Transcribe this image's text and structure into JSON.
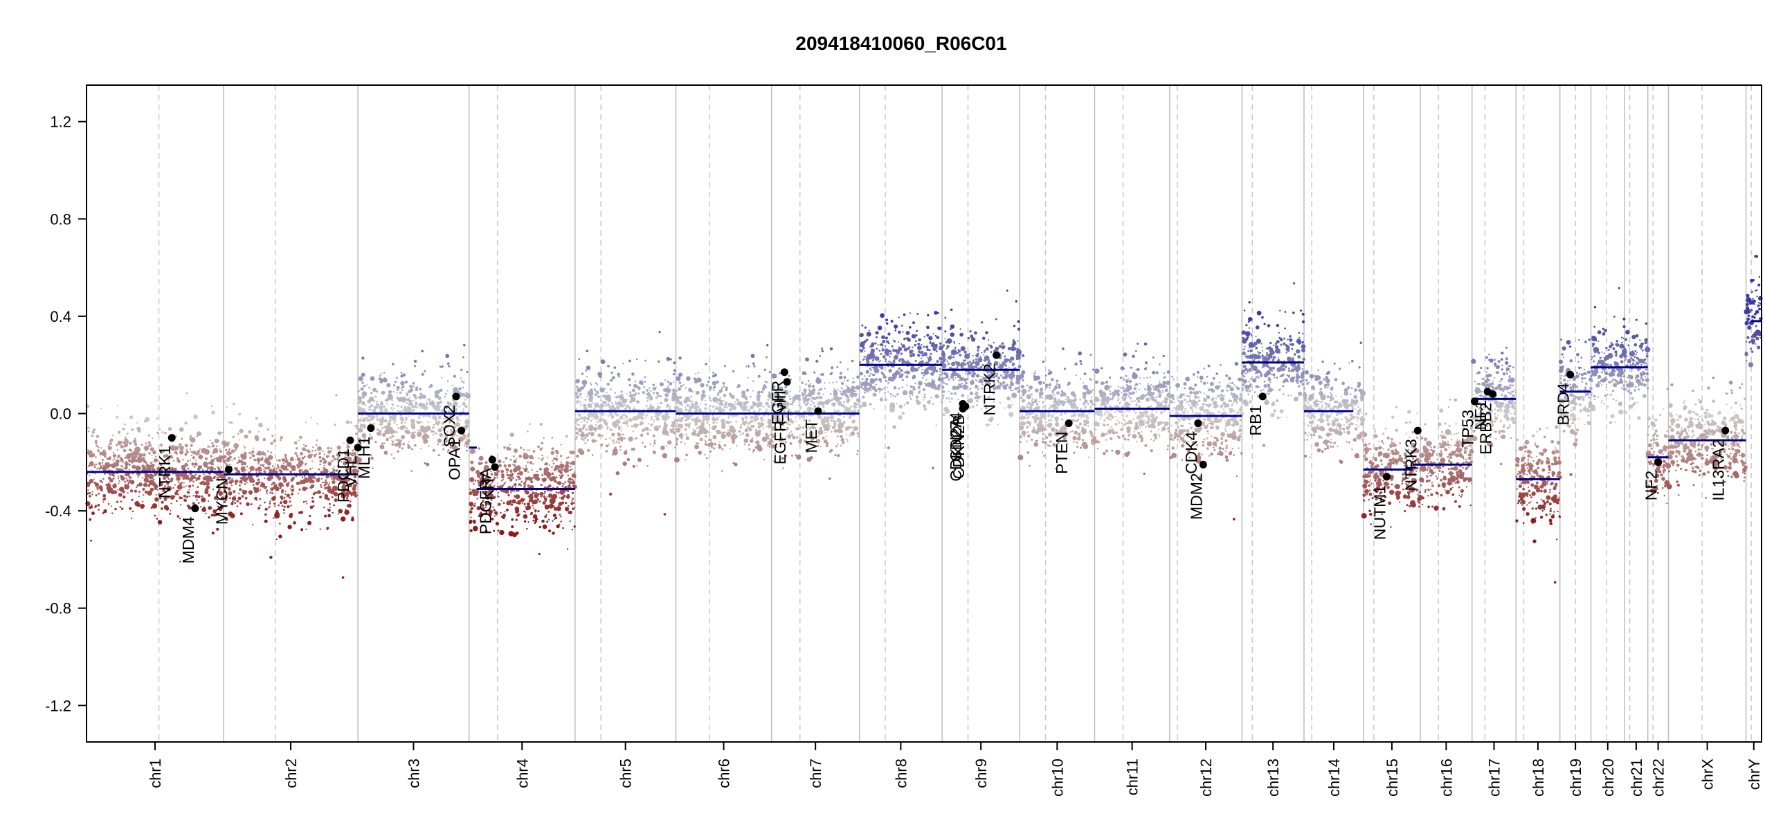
{
  "chart_data": {
    "type": "scatter",
    "title": "209418410060_R06C01",
    "xlabel": "",
    "ylabel": "",
    "ylim": [
      -1.35,
      1.35
    ],
    "y_ticks": [
      {
        "value": 1.2,
        "label": "1.2"
      },
      {
        "value": 0.8,
        "label": "0.8"
      },
      {
        "value": 0.4,
        "label": "0.4"
      },
      {
        "value": 0.0,
        "label": "0.0"
      },
      {
        "value": -0.4,
        "label": "-0.4"
      },
      {
        "value": -0.8,
        "label": "-0.8"
      },
      {
        "value": -1.2,
        "label": "-1.2"
      }
    ],
    "grid": false,
    "colors": {
      "loss": "#8b1a1a",
      "neutral": "#cccccc",
      "gain": "#3b3ba0",
      "segment": "#00008b",
      "gene_point": "#000000",
      "chrom_border": "#bdbdbd",
      "centromere": "#c8c8c8"
    },
    "chromosomes": [
      {
        "name": "chr1",
        "label": "chr1",
        "start": 0.0,
        "end": 0.53,
        "centromere": 0.28,
        "level": -0.24
      },
      {
        "name": "chr2",
        "label": "chr2",
        "start": 0.53,
        "end": 1.05,
        "centromere": 0.73,
        "level": -0.25
      },
      {
        "name": "chr3",
        "label": "chr3",
        "start": 1.05,
        "end": 1.48,
        "centromere": null,
        "level": 0.0
      },
      {
        "name": "chr4",
        "label": "chr4",
        "start": 1.48,
        "end": 1.89,
        "centromere": 1.59,
        "level": -0.31
      },
      {
        "name": "chr5",
        "label": "chr5",
        "start": 1.89,
        "end": 2.28,
        "centromere": 1.99,
        "level": 0.01
      },
      {
        "name": "chr6",
        "label": "chr6",
        "start": 2.28,
        "end": 2.65,
        "centromere": 2.41,
        "level": 0.0
      },
      {
        "name": "chr7",
        "label": "chr7",
        "start": 2.65,
        "end": 2.99,
        "centromere": 2.76,
        "level": 0.0
      },
      {
        "name": "chr8",
        "label": "chr8",
        "start": 2.99,
        "end": 3.31,
        "centromere": 3.09,
        "level": 0.2
      },
      {
        "name": "chr9",
        "label": "chr9",
        "start": 3.31,
        "end": 3.61,
        "centromere": 3.41,
        "level": 0.18
      },
      {
        "name": "chr10",
        "label": "chr10",
        "start": 3.61,
        "end": 3.9,
        "centromere": 3.71,
        "level": 0.01
      },
      {
        "name": "chr11",
        "label": "chr11",
        "start": 3.9,
        "end": 4.19,
        "centromere": 4.01,
        "level": 0.02
      },
      {
        "name": "chr12",
        "label": "chr12",
        "start": 4.19,
        "end": 4.47,
        "centromere": 4.22,
        "level": -0.01
      },
      {
        "name": "chr13",
        "label": "chr13",
        "start": 4.47,
        "end": 4.71,
        "centromere": 4.51,
        "level": 0.21
      },
      {
        "name": "chr14",
        "label": "chr14",
        "start": 4.71,
        "end": 4.94,
        "centromere": 4.74,
        "level": 0.01
      },
      {
        "name": "chr15",
        "label": "chr15",
        "start": 4.94,
        "end": 5.16,
        "centromere": 4.98,
        "level": -0.23
      },
      {
        "name": "chr16",
        "label": "chr16",
        "start": 5.16,
        "end": 5.36,
        "centromere": 5.23,
        "level": -0.21
      },
      {
        "name": "chr17",
        "label": "chr17",
        "start": 5.36,
        "end": 5.53,
        "centromere": 5.41,
        "level": 0.06
      },
      {
        "name": "chr18",
        "label": "chr18",
        "start": 5.53,
        "end": 5.7,
        "centromere": 5.56,
        "level": -0.27
      },
      {
        "name": "chr19",
        "label": "chr19",
        "start": 5.7,
        "end": 5.82,
        "centromere": 5.76,
        "level": 0.09
      },
      {
        "name": "chr20",
        "label": "chr20",
        "start": 5.82,
        "end": 5.95,
        "centromere": 5.88,
        "level": 0.19
      },
      {
        "name": "chr21",
        "label": "chr21",
        "start": 5.95,
        "end": 6.04,
        "centromere": 5.97,
        "level": 0.19
      },
      {
        "name": "chr22",
        "label": "chr22",
        "start": 6.04,
        "end": 6.12,
        "centromere": 6.06,
        "level": -0.18
      },
      {
        "name": "chrX",
        "label": "chrX",
        "start": 6.12,
        "end": 6.42,
        "centromere": 6.25,
        "level": -0.11
      },
      {
        "name": "chrY",
        "label": "chrY",
        "start": 6.42,
        "end": 6.48,
        "centromere": 6.44,
        "level": 0.38
      }
    ],
    "segments": [
      {
        "x0": 0.0,
        "x1": 0.53,
        "y": -0.24
      },
      {
        "x0": 0.53,
        "x1": 1.05,
        "y": -0.25
      },
      {
        "x0": 1.05,
        "x1": 1.48,
        "y": 0.0
      },
      {
        "x0": 1.48,
        "x1": 1.51,
        "y": -0.14
      },
      {
        "x0": 1.51,
        "x1": 1.89,
        "y": -0.31
      },
      {
        "x0": 1.89,
        "x1": 2.28,
        "y": 0.01
      },
      {
        "x0": 2.28,
        "x1": 2.65,
        "y": 0.0
      },
      {
        "x0": 2.65,
        "x1": 2.99,
        "y": 0.0
      },
      {
        "x0": 2.99,
        "x1": 3.31,
        "y": 0.2
      },
      {
        "x0": 3.31,
        "x1": 3.61,
        "y": 0.18
      },
      {
        "x0": 3.61,
        "x1": 3.9,
        "y": 0.01
      },
      {
        "x0": 3.9,
        "x1": 4.19,
        "y": 0.02
      },
      {
        "x0": 4.19,
        "x1": 4.47,
        "y": -0.01
      },
      {
        "x0": 4.47,
        "x1": 4.71,
        "y": 0.21
      },
      {
        "x0": 4.71,
        "x1": 4.9,
        "y": 0.01
      },
      {
        "x0": 4.94,
        "x1": 5.13,
        "y": -0.23
      },
      {
        "x0": 5.13,
        "x1": 5.36,
        "y": -0.21
      },
      {
        "x0": 5.36,
        "x1": 5.53,
        "y": 0.06
      },
      {
        "x0": 5.53,
        "x1": 5.7,
        "y": -0.27
      },
      {
        "x0": 5.7,
        "x1": 5.82,
        "y": 0.09
      },
      {
        "x0": 5.82,
        "x1": 5.95,
        "y": 0.19
      },
      {
        "x0": 5.95,
        "x1": 6.04,
        "y": 0.19
      },
      {
        "x0": 6.04,
        "x1": 6.12,
        "y": -0.18
      },
      {
        "x0": 6.12,
        "x1": 6.42,
        "y": -0.11
      },
      {
        "x0": 6.44,
        "x1": 6.48,
        "y": 0.38
      }
    ],
    "genes": [
      {
        "label": "NTRK1",
        "x": 0.33,
        "y": -0.1
      },
      {
        "label": "MDM4",
        "x": 0.42,
        "y": -0.39
      },
      {
        "label": "MYCN",
        "x": 0.55,
        "y": -0.23
      },
      {
        "label": "PDCD1",
        "x": 1.02,
        "y": -0.11
      },
      {
        "label": "VHL",
        "x": 1.05,
        "y": -0.14
      },
      {
        "label": "MLH1",
        "x": 1.1,
        "y": -0.06
      },
      {
        "label": "SOX2",
        "x": 1.43,
        "y": 0.07
      },
      {
        "label": "OPA1",
        "x": 1.45,
        "y": -0.07
      },
      {
        "label": "PDGFRA",
        "x": 1.57,
        "y": -0.19
      },
      {
        "label": "KIT",
        "x": 1.58,
        "y": -0.22
      },
      {
        "label": "EGFR",
        "x": 2.7,
        "y": 0.17
      },
      {
        "label": "EGFR_vIII",
        "x": 2.71,
        "y": 0.13
      },
      {
        "label": "MET",
        "x": 2.83,
        "y": 0.01
      },
      {
        "label": "CD274",
        "x": 3.39,
        "y": 0.04
      },
      {
        "label": "CDKN2A",
        "x": 3.39,
        "y": 0.02
      },
      {
        "label": "CDKN2B",
        "x": 3.4,
        "y": 0.03
      },
      {
        "label": "NTRK2",
        "x": 3.52,
        "y": 0.24
      },
      {
        "label": "PTEN",
        "x": 3.8,
        "y": -0.04
      },
      {
        "label": "CDK4",
        "x": 4.3,
        "y": -0.04
      },
      {
        "label": "MDM2",
        "x": 4.32,
        "y": -0.21
      },
      {
        "label": "RB1",
        "x": 4.55,
        "y": 0.07
      },
      {
        "label": "NUTM1",
        "x": 5.03,
        "y": -0.26
      },
      {
        "label": "NTRK3",
        "x": 5.15,
        "y": -0.07
      },
      {
        "label": "TP53",
        "x": 5.37,
        "y": 0.05
      },
      {
        "label": "NF1",
        "x": 5.42,
        "y": 0.09
      },
      {
        "label": "ERBB2",
        "x": 5.44,
        "y": 0.08
      },
      {
        "label": "BRD4",
        "x": 5.74,
        "y": 0.16
      },
      {
        "label": "NF2",
        "x": 6.08,
        "y": -0.2
      },
      {
        "label": "IL13RA2",
        "x": 6.34,
        "y": -0.07
      }
    ]
  }
}
